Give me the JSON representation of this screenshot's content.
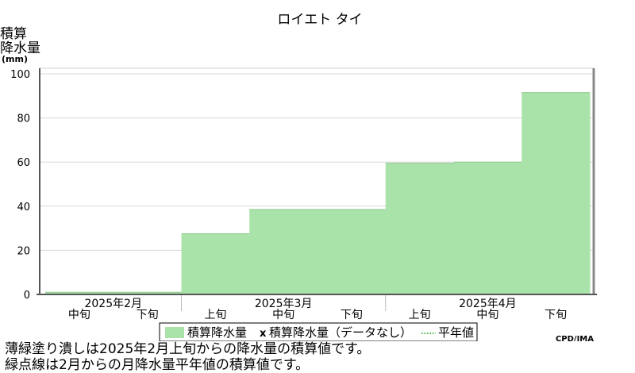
{
  "chart_data": {
    "type": "area",
    "title": "ロイエト タイ",
    "ylabel": [
      "積算",
      "降水量",
      "(mm)"
    ],
    "ylim": [
      0,
      100
    ],
    "yticks": [
      0,
      20,
      40,
      60,
      80,
      100
    ],
    "grid": true,
    "periods": [
      {
        "month": "2025年2月",
        "dekad": "中旬"
      },
      {
        "month": "2025年2月",
        "dekad": "下旬"
      },
      {
        "month": "2025年3月",
        "dekad": "上旬"
      },
      {
        "month": "2025年3月",
        "dekad": "中旬"
      },
      {
        "month": "2025年3月",
        "dekad": "下旬"
      },
      {
        "month": "2025年4月",
        "dekad": "上旬"
      },
      {
        "month": "2025年4月",
        "dekad": "中旬"
      },
      {
        "month": "2025年4月",
        "dekad": "下旬"
      }
    ],
    "month_labels": [
      "2025年2月",
      "2025年3月",
      "2025年4月"
    ],
    "series": [
      {
        "name": "積算降水量",
        "color": "#aae3aa",
        "values": [
          1,
          1,
          27.5,
          38.5,
          38.5,
          59.5,
          60,
          91.5
        ]
      }
    ],
    "legend": {
      "position": "bottom",
      "items": [
        {
          "label": "積算降水量",
          "kind": "fill",
          "color": "#aae3aa"
        },
        {
          "label": "積算降水量（データなし）",
          "kind": "marker",
          "marker": "x"
        },
        {
          "label": "平年値",
          "kind": "dotted-line",
          "color": "#009900"
        }
      ]
    },
    "credit": "CPD/JMA"
  },
  "notes": [
    "薄緑塗り潰しは2025年2月上旬からの降水量の積算値です。",
    "緑点線は2月からの月降水量平年値の積算値です。"
  ]
}
